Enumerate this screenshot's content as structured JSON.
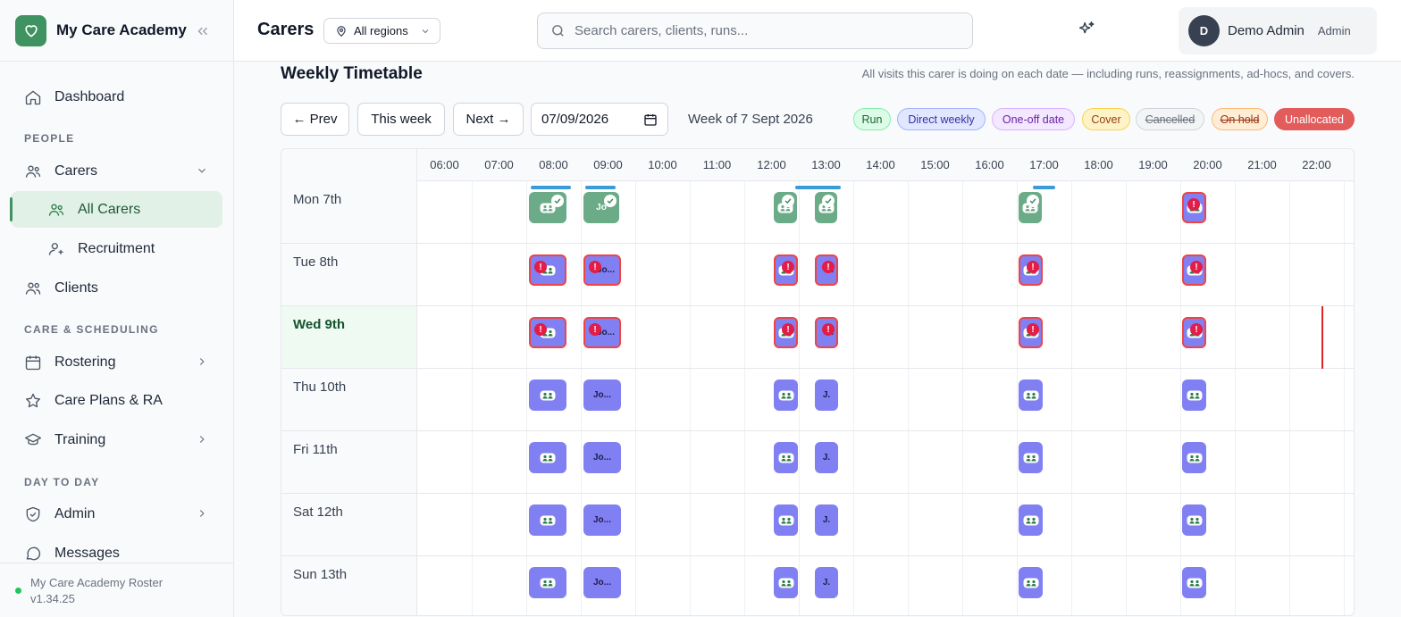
{
  "brand": {
    "name": "My Care Academy",
    "accent": "#3f9361"
  },
  "sidebar": {
    "dashboard": "Dashboard",
    "section_people": "PEOPLE",
    "carers": "Carers",
    "all_carers": "All Carers",
    "recruitment": "Recruitment",
    "clients": "Clients",
    "section_care": "CARE & SCHEDULING",
    "rostering": "Rostering",
    "care_plans": "Care Plans & RA",
    "training": "Training",
    "section_day": "DAY TO DAY",
    "admin": "Admin",
    "messages": "Messages",
    "footer_name": "My Care Academy Roster",
    "footer_version": "v1.34.25"
  },
  "header": {
    "title": "Carers",
    "region": "All regions",
    "search_placeholder": "Search carers, clients, runs...",
    "user_initial": "D",
    "user_name": "Demo Admin",
    "user_role": "Admin"
  },
  "timetable": {
    "title": "Weekly Timetable",
    "description": "All visits this carer is doing on each date — including runs, reassignments, ad-hocs, and covers.",
    "prev": "← Prev",
    "this_week": "This week",
    "next": "Next →",
    "date_value": "07/09/2026",
    "week_of": "Week of 7 Sept 2026",
    "legend": [
      {
        "label": "Run",
        "bg": "#dcfce7",
        "border": "#86efac",
        "color": "#166534"
      },
      {
        "label": "Direct weekly",
        "bg": "#e0e7ff",
        "border": "#a5b4fc",
        "color": "#3730a3"
      },
      {
        "label": "One-off date",
        "bg": "#f3e8ff",
        "border": "#d8b4fe",
        "color": "#6b21a8"
      },
      {
        "label": "Cover",
        "bg": "#fef3c7",
        "border": "#fcd34d",
        "color": "#92400e"
      },
      {
        "label": "Cancelled",
        "bg": "#f3f4f6",
        "border": "#d1d5db",
        "color": "#6b7280"
      },
      {
        "label": "On hold",
        "bg": "#ffedd5",
        "border": "#fdba74",
        "color": "#9a3412"
      },
      {
        "label": "Unallocated",
        "bg": "#e25c5c",
        "border": "#e25c5c",
        "color": "#ffffff"
      }
    ],
    "hours": [
      "06:00",
      "07:00",
      "08:00",
      "09:00",
      "10:00",
      "11:00",
      "12:00",
      "13:00",
      "14:00",
      "15:00",
      "16:00",
      "17:00",
      "18:00",
      "19:00",
      "20:00",
      "21:00",
      "22:00"
    ],
    "days": [
      {
        "label": "Mon 7th",
        "today": false
      },
      {
        "label": "Tue 8th",
        "today": false
      },
      {
        "label": "Wed 9th",
        "today": true
      },
      {
        "label": "Thu 10th",
        "today": false
      },
      {
        "label": "Fri 11th",
        "today": false
      },
      {
        "label": "Sat 12th",
        "today": false
      },
      {
        "label": "Sun 13th",
        "today": false
      }
    ],
    "visit_texts": {
      "jo_full": "Jo...",
      "jo_short": "J.",
      "jo_mon": "Jo"
    },
    "alert_mark": "!"
  }
}
